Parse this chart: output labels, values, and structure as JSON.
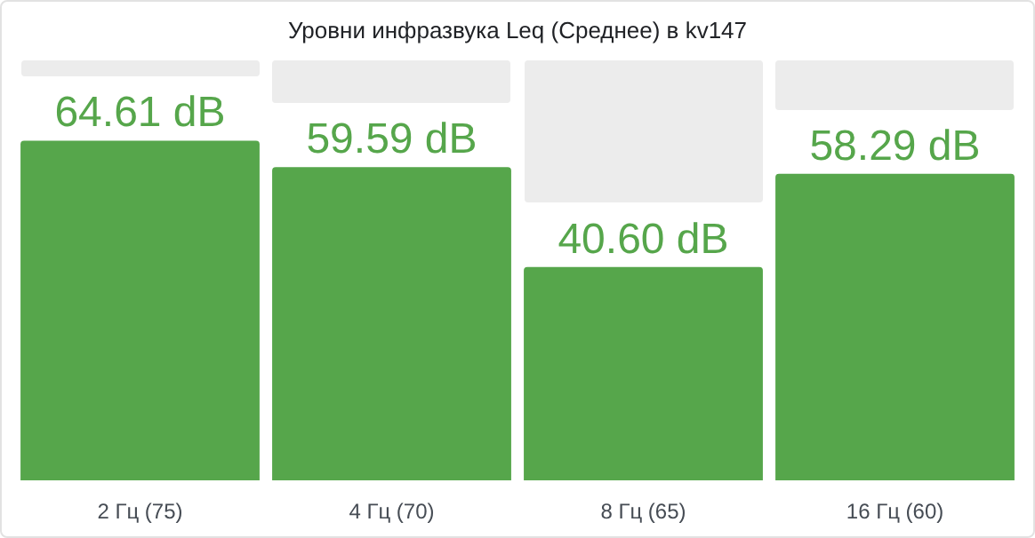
{
  "chart_data": {
    "type": "bar",
    "title": "Уровни инфразвука Leq (Среднее) в kv147",
    "categories": [
      "2 Гц (75)",
      "4 Гц (70)",
      "8 Гц (65)",
      "16 Гц (60)"
    ],
    "values": [
      64.61,
      59.59,
      40.6,
      58.29
    ],
    "value_labels": [
      "64.61 dB",
      "59.59 dB",
      "40.60 dB",
      "58.29 dB"
    ],
    "color": "#56a64b",
    "grid": false,
    "legend": false
  }
}
